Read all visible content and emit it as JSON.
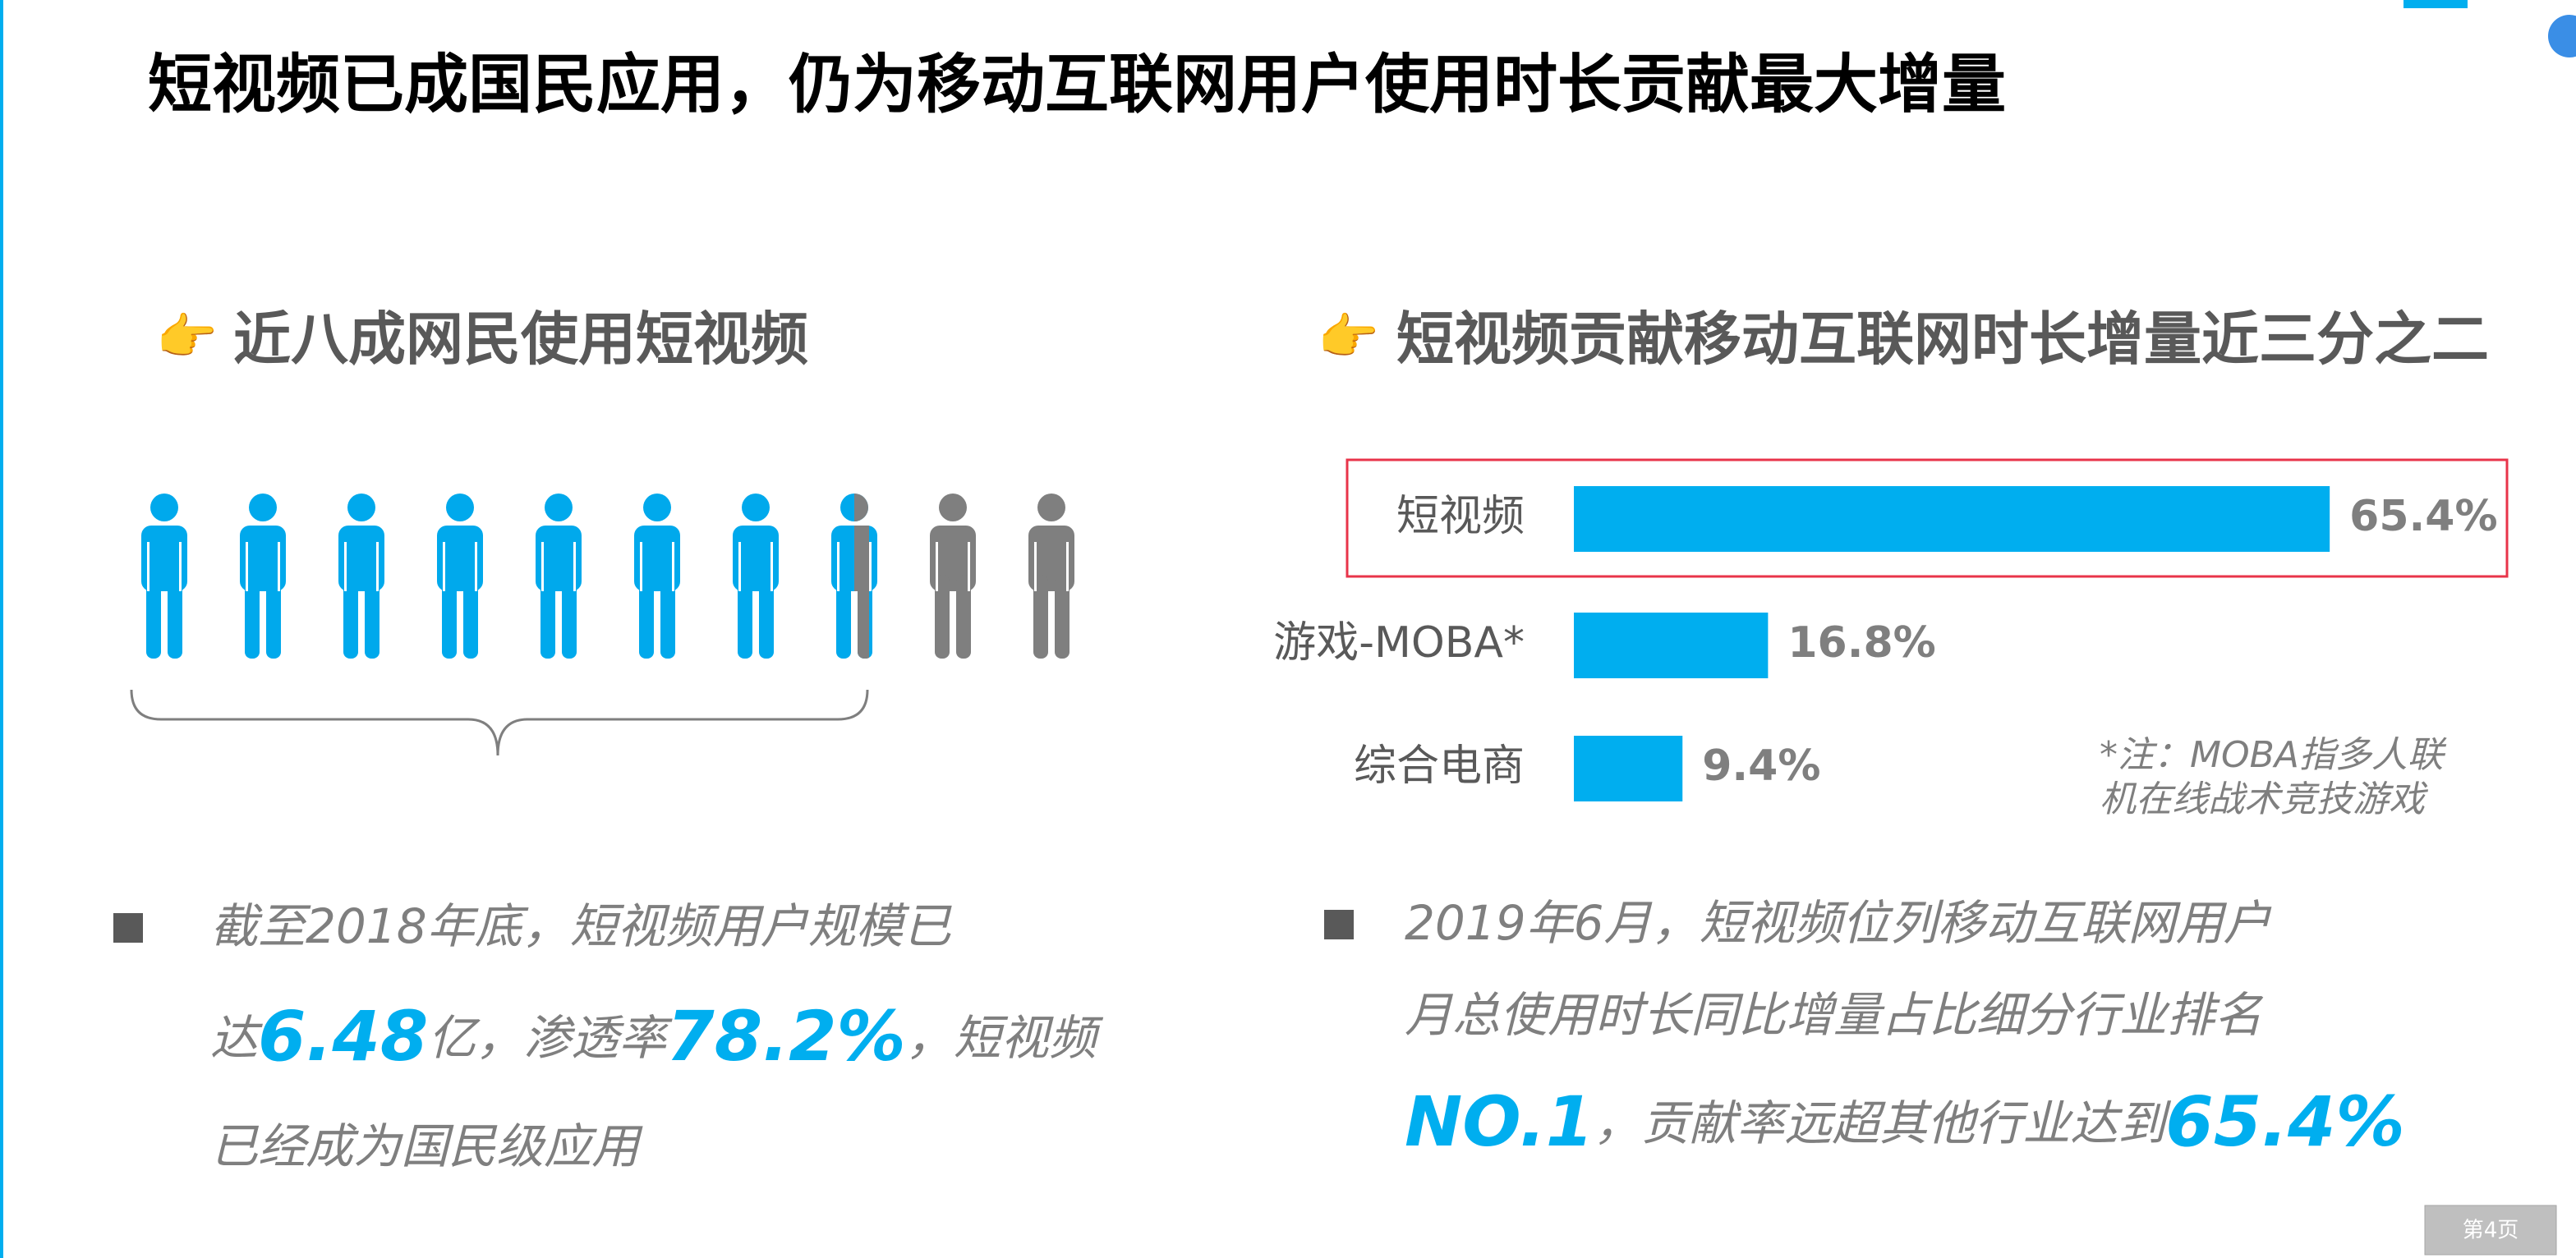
{
  "title": "短视频已成国民应用，仍为移动互联网用户使用时长贡献最大增量",
  "left": {
    "heading": "近八成网民使用短视频",
    "bullet": [
      [
        "截至2018年底，短视频用户规模已"
      ],
      [
        "达",
        "6.48",
        "亿，渗透率",
        "78.2%",
        "，短视频"
      ],
      [
        "已经成为国民级应用"
      ]
    ]
  },
  "right": {
    "heading": "短视频贡献移动互联网时长增量近三分之二",
    "note": [
      "*注：MOBA指多人联",
      "机在线战术竞技游戏"
    ],
    "bullet": [
      [
        "2019年6月，短视频位列移动互联网用户"
      ],
      [
        "月总使用时长同比增量占比细分行业排名"
      ],
      [
        "NO.1",
        "，贡献率远超其他行业达到",
        "65.4%"
      ]
    ]
  },
  "chart_data": {
    "type": "bar",
    "orientation": "horizontal",
    "categories": [
      "短视频",
      "游戏-MOBA*",
      "综合电商"
    ],
    "values": [
      65.4,
      16.8,
      9.4
    ],
    "value_labels": [
      "65.4%",
      "16.8%",
      "9.4%"
    ],
    "color": "#00aeef"
  },
  "footer": {
    "page": "第4页"
  }
}
